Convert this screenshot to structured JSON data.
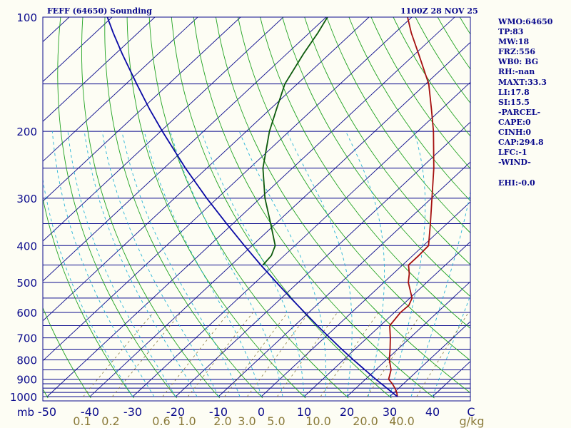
{
  "header": {
    "title": "FEFF (64650) Sounding",
    "time": "1100Z 28 NOV 25"
  },
  "sidebar": {
    "lines": [
      "WMO:64650",
      "TP:83",
      "MW:18",
      "FRZ:556",
      "WB0: BG",
      "RH:-nan",
      "MAXT:33.3",
      "LI:17.8",
      "SI:15.5",
      "-PARCEL-",
      "CAPE:0",
      "CINH:0",
      "CAP:294.8",
      "LFC:-1",
      "-WIND-",
      "",
      "EHI:-0.0"
    ]
  },
  "colors": {
    "background": "#fdfdf4",
    "isobar": "#0a0a8c",
    "isotherm": "#0a0a8c",
    "dry_adiabat": "#21a321",
    "moist_adiabat": "#26b4d6",
    "mixing_ratio": "#8a7a3a",
    "temperature": "#a50f0f",
    "dewpoint": "#0c5a0c",
    "parcel": "#0a0aa5",
    "label_dark": "#0a0a8c",
    "label_mix": "#8a7a3a"
  },
  "chart_data": {
    "type": "skew-t log-p",
    "pressure_unit": "mb",
    "temperature_unit": "C",
    "mixing_ratio_unit": "g/kg",
    "pressure_ticks": [
      100,
      200,
      300,
      400,
      500,
      600,
      700,
      800,
      900,
      1000
    ],
    "pressure_tick_labels": [
      "100",
      "200",
      "300",
      "400",
      "500",
      "600",
      "700",
      "800",
      "900",
      "1000"
    ],
    "temperature_ticks": [
      -50,
      -40,
      -30,
      -20,
      -10,
      0,
      10,
      20,
      30,
      40
    ],
    "temperature_tick_labels": [
      "-50",
      "-40",
      "-30",
      "-20",
      "-10",
      "0",
      "10",
      "20",
      "30",
      "40"
    ],
    "mixing_ratio_labels": [
      "0.1",
      "0.2",
      "0.6",
      "1.0",
      "2.0",
      "3.0",
      "5.0",
      "10.0",
      "20.0",
      "40.0"
    ],
    "mixing_ratio_values": [
      0.1,
      0.2,
      0.6,
      1.0,
      2.0,
      3.0,
      5.0,
      10.0,
      20.0,
      40.0
    ],
    "pressure_range": [
      1000,
      100
    ],
    "temperature_range_at_surface": [
      -50,
      50
    ],
    "grid": true,
    "series": [
      {
        "key": "temperature",
        "points": [
          [
            1000,
            31.8
          ],
          [
            975,
            30.6
          ],
          [
            950,
            29.1
          ],
          [
            925,
            27.4
          ],
          [
            900,
            25.4
          ],
          [
            850,
            23.6
          ],
          [
            800,
            20.7
          ],
          [
            750,
            18.2
          ],
          [
            700,
            15.4
          ],
          [
            650,
            12.2
          ],
          [
            600,
            11.4
          ],
          [
            575,
            11.6
          ],
          [
            550,
            10.5
          ],
          [
            500,
            5.7
          ],
          [
            475,
            3.8
          ],
          [
            450,
            1.4
          ],
          [
            425,
            1.4
          ],
          [
            400,
            1.2
          ],
          [
            350,
            -3.9
          ],
          [
            300,
            -9.9
          ],
          [
            250,
            -17.0
          ],
          [
            200,
            -26.3
          ],
          [
            175,
            -32.3
          ],
          [
            150,
            -39.3
          ],
          [
            125,
            -49.2
          ],
          [
            110,
            -56.2
          ],
          [
            100,
            -61.0
          ]
        ]
      },
      {
        "key": "dewpoint",
        "points": [
          [
            450,
            -32.6
          ],
          [
            425,
            -33.0
          ],
          [
            400,
            -34.6
          ],
          [
            350,
            -41.2
          ],
          [
            300,
            -48.9
          ],
          [
            250,
            -56.9
          ],
          [
            200,
            -64.6
          ],
          [
            175,
            -68.5
          ],
          [
            150,
            -72.9
          ],
          [
            125,
            -76.1
          ],
          [
            110,
            -78.0
          ],
          [
            100,
            -79.7
          ]
        ]
      },
      {
        "key": "parcel",
        "points": [
          [
            1000,
            31.8
          ],
          [
            950,
            27.2
          ],
          [
            900,
            22.4
          ],
          [
            850,
            17.5
          ],
          [
            800,
            12.3
          ],
          [
            750,
            6.9
          ],
          [
            700,
            1.3
          ],
          [
            650,
            -4.7
          ],
          [
            600,
            -11.0
          ],
          [
            550,
            -17.8
          ],
          [
            500,
            -25.1
          ],
          [
            450,
            -33.1
          ],
          [
            400,
            -41.8
          ],
          [
            350,
            -51.5
          ],
          [
            300,
            -62.5
          ],
          [
            250,
            -75.0
          ],
          [
            200,
            -89.6
          ],
          [
            175,
            -98.1
          ],
          [
            150,
            -107.5
          ],
          [
            125,
            -118.4
          ],
          [
            110,
            -125.8
          ],
          [
            100,
            -131.1
          ]
        ]
      }
    ]
  }
}
